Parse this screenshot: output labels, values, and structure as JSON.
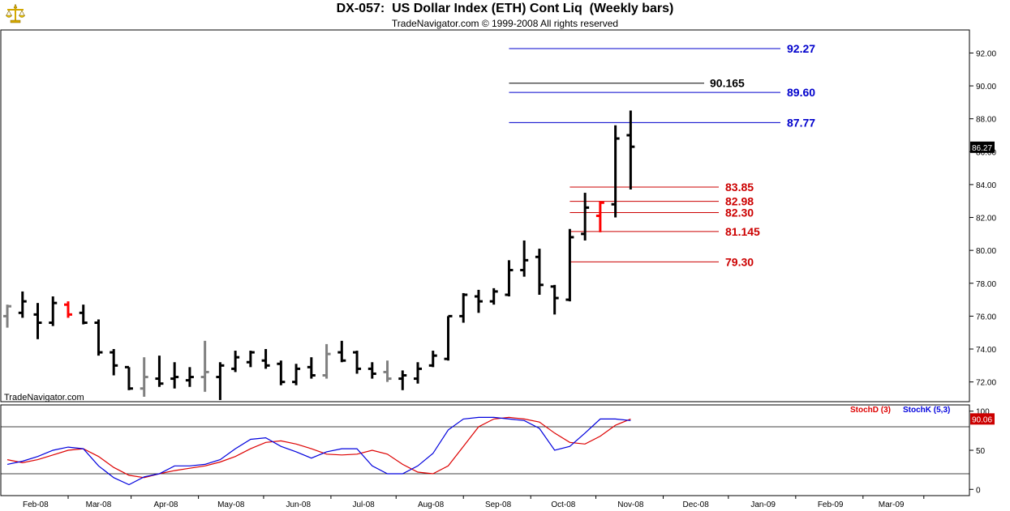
{
  "header": {
    "title": "DX-057:  US Dollar Index (ETH) Cont Liq  (Weekly bars)",
    "subtitle": "TradeNavigator.com © 1999-2008 All rights reserved",
    "logo_icon": "balance-scale-icon"
  },
  "watermark": "TradeNavigator.com",
  "colors": {
    "bar": "#000000",
    "bar_gray": "#808080",
    "bar_red": "#ff0000",
    "target_blue": "#0000cc",
    "target_red": "#cc0000",
    "stoch_d": "#dd0000",
    "stoch_k": "#0000dd",
    "price_badge_bg": "#000000",
    "stoch_badge_bg": "#cc0000"
  },
  "chart_data": [
    {
      "type": "ohlc",
      "ylim": [
        70.8,
        93.4
      ],
      "yticks": [
        "72.00",
        "74.00",
        "76.00",
        "78.00",
        "80.00",
        "82.00",
        "84.00",
        "86.00",
        "88.00",
        "90.00",
        "92.00"
      ],
      "xticks": [
        "Feb-08",
        "Mar-08",
        "Apr-08",
        "May-08",
        "Jun-08",
        "Jul-08",
        "Aug-08",
        "Sep-08",
        "Oct-08",
        "Nov-08",
        "Dec-08",
        "Jan-09",
        "Feb-09",
        "Mar-09"
      ],
      "last_price": "86.27",
      "bars": [
        {
          "date": "2008-01-04",
          "o": 76.0,
          "h": 76.7,
          "l": 75.3,
          "c": 76.6,
          "color": "gray"
        },
        {
          "date": "2008-01-11",
          "o": 76.2,
          "h": 77.5,
          "l": 75.9,
          "c": 76.9,
          "color": "black"
        },
        {
          "date": "2008-01-18",
          "o": 76.1,
          "h": 76.8,
          "l": 74.6,
          "c": 75.6,
          "color": "black"
        },
        {
          "date": "2008-01-25",
          "o": 75.6,
          "h": 77.2,
          "l": 75.4,
          "c": 76.8,
          "color": "black"
        },
        {
          "date": "2008-02-01",
          "o": 76.7,
          "h": 76.9,
          "l": 75.9,
          "c": 76.1,
          "color": "red"
        },
        {
          "date": "2008-02-08",
          "o": 76.2,
          "h": 76.7,
          "l": 75.5,
          "c": 75.6,
          "color": "black"
        },
        {
          "date": "2008-02-15",
          "o": 75.6,
          "h": 75.8,
          "l": 73.6,
          "c": 73.8,
          "color": "black"
        },
        {
          "date": "2008-02-22",
          "o": 73.8,
          "h": 74.0,
          "l": 72.4,
          "c": 73.0,
          "color": "black"
        },
        {
          "date": "2008-02-29",
          "o": 72.9,
          "h": 72.9,
          "l": 71.5,
          "c": 71.6,
          "color": "black"
        },
        {
          "date": "2008-03-07",
          "o": 71.6,
          "h": 73.5,
          "l": 71.1,
          "c": 72.3,
          "color": "gray"
        },
        {
          "date": "2008-03-14",
          "o": 72.2,
          "h": 73.6,
          "l": 71.7,
          "c": 71.9,
          "color": "black"
        },
        {
          "date": "2008-03-21",
          "o": 72.2,
          "h": 73.2,
          "l": 71.6,
          "c": 72.3,
          "color": "black"
        },
        {
          "date": "2008-03-28",
          "o": 72.1,
          "h": 72.9,
          "l": 71.7,
          "c": 72.3,
          "color": "black"
        },
        {
          "date": "2008-04-04",
          "o": 72.3,
          "h": 74.5,
          "l": 71.4,
          "c": 72.6,
          "color": "gray"
        },
        {
          "date": "2008-04-11",
          "o": 72.3,
          "h": 73.2,
          "l": 70.9,
          "c": 73.0,
          "color": "black"
        },
        {
          "date": "2008-04-18",
          "o": 72.8,
          "h": 73.9,
          "l": 72.6,
          "c": 73.5,
          "color": "black"
        },
        {
          "date": "2008-04-25",
          "o": 73.2,
          "h": 73.9,
          "l": 72.9,
          "c": 73.8,
          "color": "black"
        },
        {
          "date": "2008-05-02",
          "o": 73.3,
          "h": 74.0,
          "l": 72.8,
          "c": 73.0,
          "color": "black"
        },
        {
          "date": "2008-05-09",
          "o": 73.1,
          "h": 73.3,
          "l": 71.8,
          "c": 72.0,
          "color": "black"
        },
        {
          "date": "2008-05-16",
          "o": 72.0,
          "h": 73.1,
          "l": 71.8,
          "c": 72.8,
          "color": "black"
        },
        {
          "date": "2008-05-23",
          "o": 72.9,
          "h": 73.5,
          "l": 72.2,
          "c": 72.4,
          "color": "black"
        },
        {
          "date": "2008-05-30",
          "o": 72.4,
          "h": 74.3,
          "l": 72.2,
          "c": 73.7,
          "color": "gray"
        },
        {
          "date": "2008-06-06",
          "o": 73.8,
          "h": 74.5,
          "l": 73.2,
          "c": 73.3,
          "color": "black"
        },
        {
          "date": "2008-06-13",
          "o": 73.8,
          "h": 73.9,
          "l": 72.5,
          "c": 72.8,
          "color": "black"
        },
        {
          "date": "2008-06-20",
          "o": 72.8,
          "h": 73.2,
          "l": 72.2,
          "c": 72.5,
          "color": "black"
        },
        {
          "date": "2008-06-27",
          "o": 72.6,
          "h": 73.3,
          "l": 72.0,
          "c": 72.2,
          "color": "gray"
        },
        {
          "date": "2008-07-04",
          "o": 72.2,
          "h": 72.7,
          "l": 71.5,
          "c": 72.4,
          "color": "black"
        },
        {
          "date": "2008-07-11",
          "o": 72.2,
          "h": 73.2,
          "l": 71.9,
          "c": 72.8,
          "color": "black"
        },
        {
          "date": "2008-07-18",
          "o": 73.0,
          "h": 73.9,
          "l": 72.9,
          "c": 73.6,
          "color": "black"
        },
        {
          "date": "2008-07-25",
          "o": 73.4,
          "h": 76.0,
          "l": 73.3,
          "c": 76.0,
          "color": "black"
        },
        {
          "date": "2008-08-01",
          "o": 76.0,
          "h": 77.4,
          "l": 75.6,
          "c": 77.3,
          "color": "black"
        },
        {
          "date": "2008-08-08",
          "o": 77.2,
          "h": 77.6,
          "l": 76.2,
          "c": 76.9,
          "color": "black"
        },
        {
          "date": "2008-08-15",
          "o": 76.9,
          "h": 77.7,
          "l": 76.7,
          "c": 77.5,
          "color": "black"
        },
        {
          "date": "2008-08-22",
          "o": 77.3,
          "h": 79.4,
          "l": 77.2,
          "c": 78.8,
          "color": "black"
        },
        {
          "date": "2008-08-29",
          "o": 78.8,
          "h": 80.6,
          "l": 78.4,
          "c": 79.4,
          "color": "black"
        },
        {
          "date": "2008-09-05",
          "o": 79.6,
          "h": 80.1,
          "l": 77.3,
          "c": 77.9,
          "color": "black"
        },
        {
          "date": "2008-09-12",
          "o": 77.8,
          "h": 77.9,
          "l": 76.1,
          "c": 77.1,
          "color": "black"
        },
        {
          "date": "2008-09-19",
          "o": 77.0,
          "h": 81.3,
          "l": 76.9,
          "c": 80.8,
          "color": "black"
        },
        {
          "date": "2008-09-26",
          "o": 81.0,
          "h": 83.5,
          "l": 80.6,
          "c": 82.6,
          "color": "black"
        },
        {
          "date": "2008-10-03",
          "o": 82.1,
          "h": 83.0,
          "l": 81.1,
          "c": 82.9,
          "color": "red"
        },
        {
          "date": "2008-10-10",
          "o": 82.8,
          "h": 87.6,
          "l": 82.0,
          "c": 86.8,
          "color": "black"
        },
        {
          "date": "2008-10-17",
          "o": 87.0,
          "h": 88.5,
          "l": 83.7,
          "c": 86.3,
          "color": "black"
        }
      ],
      "target_lines": [
        {
          "label": "92.27",
          "value": 92.27,
          "color": "blue",
          "from": "2008-08-22"
        },
        {
          "label": "90.165",
          "value": 90.165,
          "color": "black",
          "from": "2008-08-22"
        },
        {
          "label": "89.60",
          "value": 89.6,
          "color": "blue",
          "from": "2008-08-22"
        },
        {
          "label": "87.77",
          "value": 87.77,
          "color": "blue",
          "from": "2008-08-22"
        },
        {
          "label": "83.85",
          "value": 83.85,
          "color": "red",
          "from": "2008-09-19"
        },
        {
          "label": "82.98",
          "value": 82.98,
          "color": "red",
          "from": "2008-09-19"
        },
        {
          "label": "82.30",
          "value": 82.3,
          "color": "red",
          "from": "2008-09-19"
        },
        {
          "label": "81.145",
          "value": 81.145,
          "color": "red",
          "from": "2008-09-19"
        },
        {
          "label": "79.30",
          "value": 79.3,
          "color": "red",
          "from": "2008-09-19"
        }
      ]
    },
    {
      "type": "line",
      "ylim": [
        -8,
        108
      ],
      "yticks": [
        "0",
        "50",
        "100"
      ],
      "reference_lines": [
        20,
        80
      ],
      "last_value": "90.06",
      "series": [
        {
          "name": "StochD (3)",
          "color": "red",
          "values": [
            38,
            34,
            38,
            44,
            50,
            52,
            42,
            28,
            18,
            15,
            20,
            24,
            27,
            30,
            35,
            42,
            52,
            60,
            62,
            58,
            52,
            45,
            44,
            45,
            50,
            45,
            32,
            22,
            20,
            30,
            55,
            80,
            90,
            92,
            90,
            86,
            72,
            60,
            58,
            68,
            82,
            90
          ]
        },
        {
          "name": "StochK (5,3)",
          "color": "blue",
          "values": [
            32,
            36,
            42,
            50,
            54,
            52,
            30,
            15,
            6,
            16,
            20,
            30,
            30,
            32,
            38,
            52,
            64,
            66,
            55,
            48,
            40,
            48,
            52,
            52,
            30,
            20,
            20,
            30,
            46,
            76,
            90,
            92,
            92,
            90,
            88,
            78,
            50,
            55,
            72,
            90,
            90,
            88
          ]
        }
      ]
    }
  ]
}
